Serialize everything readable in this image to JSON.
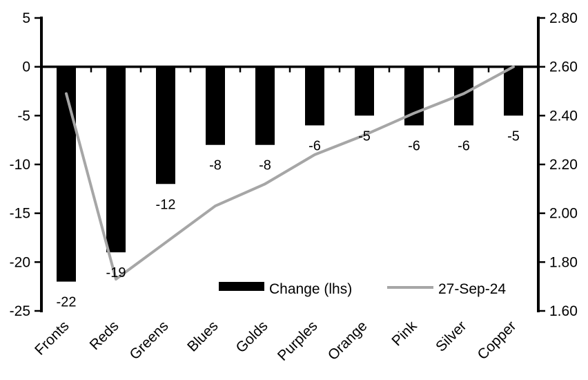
{
  "chart_data": {
    "type": "bar+line",
    "title": "",
    "categories": [
      "Fronts",
      "Reds",
      "Greens",
      "Blues",
      "Golds",
      "Purples",
      "Orange",
      "Pink",
      "Silver",
      "Copper"
    ],
    "series": [
      {
        "name": "Change (lhs)",
        "type": "bar",
        "axis": "left",
        "color": "#000000",
        "values": [
          -22,
          -19,
          -12,
          -8,
          -8,
          -6,
          -5,
          -6,
          -6,
          -5
        ],
        "data_labels": [
          "-22",
          "-19",
          "-12",
          "-8",
          "-8",
          "-6",
          "-5",
          "-6",
          "-6",
          "-5"
        ]
      },
      {
        "name": "27-Sep-24",
        "type": "line",
        "axis": "right",
        "color": "#a6a6a6",
        "values": [
          2.49,
          1.73,
          1.88,
          2.03,
          2.12,
          2.24,
          2.32,
          2.41,
          2.49,
          2.6
        ]
      }
    ],
    "left_axis": {
      "max": 5,
      "min": -25,
      "tick_step": 5,
      "tick_labels": [
        "5",
        "0",
        "-5",
        "-10",
        "-15",
        "-20",
        "-25"
      ]
    },
    "right_axis": {
      "max": 2.8,
      "min": 1.6,
      "tick_step": 0.2,
      "tick_labels": [
        "2.80",
        "2.60",
        "2.40",
        "2.20",
        "2.00",
        "1.80",
        "1.60"
      ]
    },
    "legend": [
      {
        "label": "Change (lhs)",
        "marker": "bar",
        "color": "#000000"
      },
      {
        "label": "27-Sep-24",
        "marker": "line",
        "color": "#a6a6a6"
      }
    ],
    "legend_position": "inside-bottom-center",
    "grid": false,
    "background": "#ffffff"
  }
}
